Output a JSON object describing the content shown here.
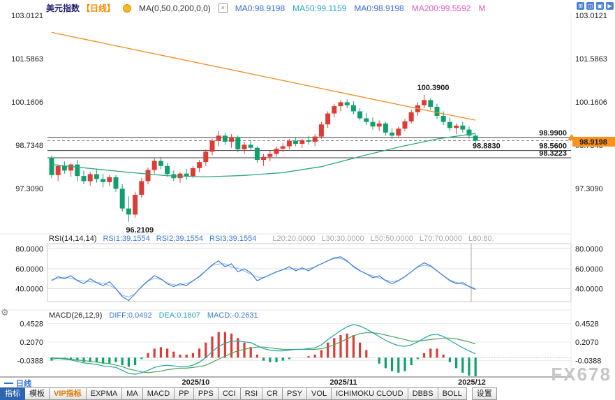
{
  "header": {
    "title": "美元指数",
    "timeframe": "【日线】",
    "ma_settings": "MA(0,50,0,200,0,0)",
    "ma0": "MA0:98.9198",
    "ma50": "MA50:99.1159",
    "ma0b": "MA0:98.9198",
    "ma200": "MA200:99.5592",
    "ma_more": "M"
  },
  "icons": {
    "gear": "⚙",
    "remove_indicator": "×",
    "window_controls": [
      "⊞",
      "◫",
      "▣",
      "▶"
    ]
  },
  "rsi_header": {
    "name": "RSI(14,14,14)",
    "rsi1": "RSI1:39.1554",
    "rsi2": "RSI2:39.1554",
    "rsi3": "RSI3:39.1554",
    "l20": "L20:20.0000",
    "l30": "L30:30.0000",
    "l50": "L50:50.0000",
    "l70": "L70:70.0000",
    "l80": "L80:80."
  },
  "macd_header": {
    "name": "MACD(26,12,9)",
    "diff": "DIFF:0.0492",
    "dea": "DEA:0.1807",
    "macd": "MACD:-0.2631"
  },
  "legend": {
    "timeframe": "日线"
  },
  "watermark": "FX678",
  "toolbar": {
    "items": [
      {
        "label": "指标",
        "name": "indicators",
        "active": true
      },
      {
        "label": "模板",
        "name": "templates"
      },
      {
        "label": "VIP指标",
        "name": "vip-indicators",
        "vip": true
      },
      {
        "label": "EXPMA",
        "name": "expma"
      },
      {
        "label": "MA",
        "name": "ma"
      },
      {
        "label": "MACD",
        "name": "macd"
      },
      {
        "label": "PP",
        "name": "pp"
      },
      {
        "label": "PPS",
        "name": "pps"
      },
      {
        "label": "CCI",
        "name": "cci"
      },
      {
        "label": "RSI",
        "name": "rsi"
      },
      {
        "label": "CR",
        "name": "cr"
      },
      {
        "label": "PSY",
        "name": "psy"
      },
      {
        "label": "VOL",
        "name": "vol"
      },
      {
        "label": "ICHIMOKU CLOUD",
        "name": "ichimoku-cloud"
      },
      {
        "label": "DBBS",
        "name": "dbbs"
      },
      {
        "label": "BOLL",
        "name": "boll"
      },
      {
        "label": "设置",
        "name": "settings",
        "gap": true
      }
    ]
  },
  "chart_data": {
    "type": "candlestick",
    "title": "美元指数 日线",
    "y_ticks": {
      "price": [
        "103.0121",
        "101.5863",
        "100.1606",
        "98.7348",
        "97.3090"
      ],
      "rsi": [
        "80.0000",
        "60.0000",
        "40.0000"
      ],
      "macd": [
        "0.4528",
        "0.2070",
        "-0.0388"
      ]
    },
    "x_ticks": [
      {
        "text": "2025/10",
        "index": 22
      },
      {
        "text": "2025/11",
        "index": 45
      },
      {
        "text": "2025/12",
        "index": 65
      }
    ],
    "annotations": {
      "high_label": {
        "text": "100.3900",
        "index": 58,
        "price": 100.39
      },
      "low_label": {
        "text": "96.2109",
        "index": 12,
        "price": 96.2109
      },
      "last_price_label": {
        "text": "98.8830",
        "price": 98.883
      },
      "hlines": [
        {
          "label": "98.9900",
          "price": 98.99
        },
        {
          "label": "98.5600",
          "price": 98.56
        },
        {
          "label": "98.3223",
          "price": 98.3223
        }
      ],
      "axis_badge": {
        "text": "98.9198",
        "price": 98.9198
      }
    },
    "candles": [
      [
        98.33,
        98.4,
        97.65,
        97.75
      ],
      [
        97.75,
        98.1,
        97.55,
        98.05
      ],
      [
        98.05,
        98.2,
        97.8,
        97.9
      ],
      [
        97.9,
        98.15,
        97.7,
        98.1
      ],
      [
        98.1,
        98.25,
        97.55,
        97.72
      ],
      [
        97.72,
        97.9,
        97.45,
        97.55
      ],
      [
        97.55,
        97.85,
        97.4,
        97.78
      ],
      [
        97.78,
        97.95,
        97.5,
        97.62
      ],
      [
        97.62,
        97.8,
        97.35,
        97.52
      ],
      [
        97.52,
        97.75,
        97.4,
        97.68
      ],
      [
        97.68,
        97.75,
        97.2,
        97.3
      ],
      [
        97.3,
        97.45,
        96.55,
        96.65
      ],
      [
        96.65,
        97.05,
        96.21,
        96.45
      ],
      [
        96.45,
        97.2,
        96.35,
        97.1
      ],
      [
        97.1,
        97.65,
        97.0,
        97.55
      ],
      [
        97.55,
        98.0,
        97.45,
        97.92
      ],
      [
        97.92,
        98.3,
        97.8,
        98.22
      ],
      [
        98.22,
        98.35,
        97.95,
        98.05
      ],
      [
        98.05,
        98.15,
        97.7,
        97.78
      ],
      [
        97.78,
        97.9,
        97.55,
        97.65
      ],
      [
        97.65,
        97.85,
        97.5,
        97.8
      ],
      [
        97.8,
        97.95,
        97.6,
        97.72
      ],
      [
        97.72,
        98.05,
        97.65,
        97.98
      ],
      [
        97.98,
        98.25,
        97.85,
        98.18
      ],
      [
        98.18,
        98.6,
        98.05,
        98.52
      ],
      [
        98.52,
        98.95,
        98.4,
        98.88
      ],
      [
        98.88,
        99.2,
        98.7,
        99.05
      ],
      [
        99.05,
        99.15,
        98.75,
        98.85
      ],
      [
        98.85,
        99.1,
        98.65,
        99.0
      ],
      [
        99.0,
        99.05,
        98.5,
        98.6
      ],
      [
        98.6,
        98.85,
        98.45,
        98.75
      ],
      [
        98.75,
        98.9,
        98.55,
        98.65
      ],
      [
        98.65,
        98.7,
        98.15,
        98.25
      ],
      [
        98.25,
        98.45,
        98.05,
        98.35
      ],
      [
        98.35,
        98.55,
        98.2,
        98.45
      ],
      [
        98.45,
        98.7,
        98.35,
        98.62
      ],
      [
        98.62,
        98.8,
        98.5,
        98.7
      ],
      [
        98.7,
        98.95,
        98.6,
        98.88
      ],
      [
        98.88,
        99.0,
        98.7,
        98.78
      ],
      [
        98.78,
        98.95,
        98.65,
        98.9
      ],
      [
        98.9,
        99.05,
        98.75,
        98.85
      ],
      [
        98.85,
        99.1,
        98.7,
        99.02
      ],
      [
        99.02,
        99.5,
        98.95,
        99.42
      ],
      [
        99.42,
        99.85,
        99.3,
        99.78
      ],
      [
        99.78,
        100.1,
        99.65,
        100.02
      ],
      [
        100.02,
        100.22,
        99.85,
        100.15
      ],
      [
        100.15,
        100.25,
        99.95,
        100.05
      ],
      [
        100.05,
        100.18,
        99.75,
        99.85
      ],
      [
        99.85,
        99.95,
        99.55,
        99.62
      ],
      [
        99.62,
        99.8,
        99.4,
        99.5
      ],
      [
        99.5,
        99.65,
        99.25,
        99.35
      ],
      [
        99.35,
        99.55,
        99.2,
        99.45
      ],
      [
        99.45,
        99.5,
        99.05,
        99.15
      ],
      [
        99.15,
        99.3,
        98.95,
        99.05
      ],
      [
        99.05,
        99.35,
        99.0,
        99.28
      ],
      [
        99.28,
        99.6,
        99.2,
        99.52
      ],
      [
        99.52,
        99.9,
        99.45,
        99.82
      ],
      [
        99.82,
        100.15,
        99.7,
        100.05
      ],
      [
        100.05,
        100.39,
        99.95,
        100.22
      ],
      [
        100.22,
        100.3,
        99.9,
        100.0
      ],
      [
        100.0,
        100.1,
        99.6,
        99.7
      ],
      [
        99.7,
        99.85,
        99.4,
        99.5
      ],
      [
        99.5,
        99.65,
        99.2,
        99.3
      ],
      [
        99.3,
        99.45,
        99.1,
        99.38
      ],
      [
        99.38,
        99.5,
        99.15,
        99.25
      ],
      [
        99.25,
        99.35,
        98.95,
        99.05
      ],
      [
        99.05,
        99.1,
        98.8,
        98.883
      ]
    ],
    "series": [
      {
        "name": "MA50",
        "points": [
          [
            0,
            98.1
          ],
          [
            6,
            97.97
          ],
          [
            12,
            97.84
          ],
          [
            18,
            97.73
          ],
          [
            24,
            97.69
          ],
          [
            30,
            97.74
          ],
          [
            36,
            97.83
          ],
          [
            42,
            98.03
          ],
          [
            48,
            98.36
          ],
          [
            54,
            98.67
          ],
          [
            60,
            98.94
          ],
          [
            66,
            99.12
          ]
        ]
      },
      {
        "name": "MA200",
        "points": [
          [
            0,
            102.45
          ],
          [
            10,
            102.01
          ],
          [
            20,
            101.57
          ],
          [
            30,
            101.13
          ],
          [
            40,
            100.69
          ],
          [
            50,
            100.25
          ],
          [
            60,
            99.81
          ],
          [
            66,
            99.56
          ]
        ]
      }
    ],
    "rsi": {
      "values": [
        48,
        52,
        50,
        53,
        48,
        45,
        50,
        46,
        43,
        47,
        40,
        32,
        28,
        35,
        42,
        48,
        53,
        50,
        45,
        42,
        45,
        43,
        48,
        52,
        58,
        64,
        68,
        62,
        65,
        57,
        60,
        56,
        48,
        51,
        54,
        57,
        59,
        62,
        58,
        61,
        58,
        62,
        65,
        68,
        71,
        72,
        68,
        62,
        58,
        55,
        51,
        53,
        48,
        45,
        48,
        52,
        57,
        62,
        66,
        63,
        58,
        53,
        48,
        45,
        46,
        42,
        39.16
      ]
    },
    "macd": {
      "diff": [
        -0.02,
        -0.01,
        -0.02,
        -0.03,
        -0.05,
        -0.07,
        -0.08,
        -0.09,
        -0.11,
        -0.12,
        -0.13,
        -0.17,
        -0.21,
        -0.22,
        -0.2,
        -0.17,
        -0.13,
        -0.11,
        -0.1,
        -0.11,
        -0.12,
        -0.12,
        -0.1,
        -0.06,
        0.0,
        0.08,
        0.15,
        0.19,
        0.22,
        0.22,
        0.21,
        0.2,
        0.16,
        0.12,
        0.1,
        0.09,
        0.09,
        0.1,
        0.11,
        0.11,
        0.12,
        0.13,
        0.17,
        0.24,
        0.3,
        0.36,
        0.41,
        0.44,
        0.42,
        0.38,
        0.33,
        0.28,
        0.23,
        0.19,
        0.16,
        0.15,
        0.17,
        0.21,
        0.26,
        0.3,
        0.31,
        0.28,
        0.23,
        0.18,
        0.13,
        0.09,
        0.0492
      ],
      "dea": [
        0.0,
        -0.01,
        -0.01,
        -0.02,
        -0.03,
        -0.04,
        -0.05,
        -0.06,
        -0.07,
        -0.08,
        -0.1,
        -0.12,
        -0.15,
        -0.17,
        -0.19,
        -0.2,
        -0.19,
        -0.18,
        -0.16,
        -0.15,
        -0.14,
        -0.14,
        -0.13,
        -0.12,
        -0.1,
        -0.06,
        -0.02,
        0.02,
        0.06,
        0.09,
        0.11,
        0.13,
        0.14,
        0.14,
        0.13,
        0.12,
        0.11,
        0.11,
        0.11,
        0.11,
        0.11,
        0.11,
        0.12,
        0.14,
        0.17,
        0.21,
        0.25,
        0.29,
        0.32,
        0.33,
        0.33,
        0.32,
        0.3,
        0.28,
        0.26,
        0.24,
        0.22,
        0.22,
        0.23,
        0.24,
        0.25,
        0.26,
        0.26,
        0.25,
        0.23,
        0.21,
        0.1807
      ]
    },
    "colors": {
      "up": "#dd3b36",
      "down": "#0fa16d",
      "ma50": "#2fa77c",
      "ma200": "#ef8b1d",
      "rsi": "#3a7bd5",
      "rsi2": "#8ab4e8",
      "diff": "#21a3a3",
      "dea": "#4aa455",
      "hline": "#3c3c3c",
      "badge": "#f7931e",
      "high_label": "#dd2222",
      "low_label": "#0a9a5a",
      "last_label": "#0a9a5a"
    }
  }
}
